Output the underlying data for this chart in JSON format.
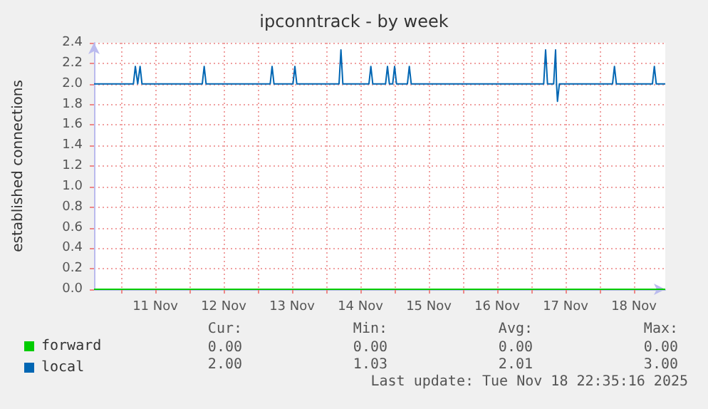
{
  "chart_data": {
    "type": "line",
    "title": "ipconntrack - by week",
    "ylabel": "established connections",
    "xlim": [
      "2025-11-10T14:30",
      "2025-11-18T23:00"
    ],
    "xticks": [
      {
        "value": "2025-11-11T00:00",
        "label": null
      },
      {
        "value": "2025-11-11T12:00",
        "label": "11 Nov"
      },
      {
        "value": "2025-11-12T00:00",
        "label": null
      },
      {
        "value": "2025-11-12T12:00",
        "label": "12 Nov"
      },
      {
        "value": "2025-11-13T00:00",
        "label": null
      },
      {
        "value": "2025-11-13T12:00",
        "label": "13 Nov"
      },
      {
        "value": "2025-11-14T00:00",
        "label": null
      },
      {
        "value": "2025-11-14T12:00",
        "label": "14 Nov"
      },
      {
        "value": "2025-11-15T00:00",
        "label": null
      },
      {
        "value": "2025-11-15T12:00",
        "label": "15 Nov"
      },
      {
        "value": "2025-11-16T00:00",
        "label": null
      },
      {
        "value": "2025-11-16T12:00",
        "label": "16 Nov"
      },
      {
        "value": "2025-11-17T00:00",
        "label": null
      },
      {
        "value": "2025-11-17T12:00",
        "label": "17 Nov"
      },
      {
        "value": "2025-11-18T00:00",
        "label": null
      },
      {
        "value": "2025-11-18T12:00",
        "label": "18 Nov"
      }
    ],
    "ylim": [
      0,
      2.4
    ],
    "yticks": [
      {
        "value": 0,
        "label": "0.0"
      },
      0.2,
      0.4,
      0.6,
      0.8,
      {
        "value": 1,
        "label": "1.0"
      },
      1.2,
      1.4,
      1.6,
      1.8,
      {
        "value": 2,
        "label": "2.0"
      },
      2.2,
      2.4
    ],
    "grid": true,
    "legend": "bottom",
    "marker": "none",
    "series": [
      {
        "name": "forward",
        "color": "#00cc00",
        "x": [
          "2025-11-10T14:30",
          "2025-11-18T23:00"
        ],
        "values": [
          0,
          0
        ]
      },
      {
        "name": "local",
        "color": "#0066b3",
        "x": [
          "2025-11-10T14:30",
          "2025-11-11T04:20",
          "2025-11-11T05:00",
          "2025-11-11T05:50",
          "2025-11-11T06:40",
          "2025-11-11T07:20",
          "2025-11-12T04:30",
          "2025-11-12T05:10",
          "2025-11-12T05:50",
          "2025-11-13T04:20",
          "2025-11-13T05:00",
          "2025-11-13T05:40",
          "2025-11-13T12:20",
          "2025-11-13T13:00",
          "2025-11-13T13:40",
          "2025-11-14T04:30",
          "2025-11-14T05:10",
          "2025-11-14T05:50",
          "2025-11-14T15:00",
          "2025-11-14T15:40",
          "2025-11-14T16:20",
          "2025-11-14T20:50",
          "2025-11-14T21:30",
          "2025-11-14T22:10",
          "2025-11-14T23:20",
          "2025-11-15T00:00",
          "2025-11-15T00:40",
          "2025-11-15T04:30",
          "2025-11-15T05:10",
          "2025-11-15T05:50",
          "2025-11-17T04:20",
          "2025-11-17T05:00",
          "2025-11-17T05:40",
          "2025-11-17T07:50",
          "2025-11-17T08:30",
          "2025-11-17T08:50",
          "2025-11-17T09:10",
          "2025-11-17T09:50",
          "2025-11-18T04:30",
          "2025-11-18T05:10",
          "2025-11-18T05:50",
          "2025-11-18T18:30",
          "2025-11-18T19:10",
          "2025-11-18T19:50",
          "2025-11-18T23:00"
        ],
        "values": [
          2,
          2,
          2.17,
          2,
          2.17,
          2,
          2,
          2.17,
          2,
          2,
          2.17,
          2,
          2,
          2.17,
          2,
          2,
          2.33,
          2,
          2,
          2.17,
          2,
          2,
          2.17,
          2,
          2,
          2.17,
          2,
          2,
          2.17,
          2,
          2,
          2.33,
          2,
          2,
          2.33,
          2,
          1.83,
          2,
          2,
          2.17,
          2,
          2,
          2.17,
          2,
          2
        ]
      }
    ],
    "annotations": [
      "Cur:",
      "Min:",
      "Avg:",
      "Max:",
      "0.00",
      "0.00",
      "0.00",
      "0.00",
      "2.00",
      "1.03",
      "2.01",
      "3.00",
      "Last update: Tue Nov 18 22:35:16 2025"
    ]
  }
}
